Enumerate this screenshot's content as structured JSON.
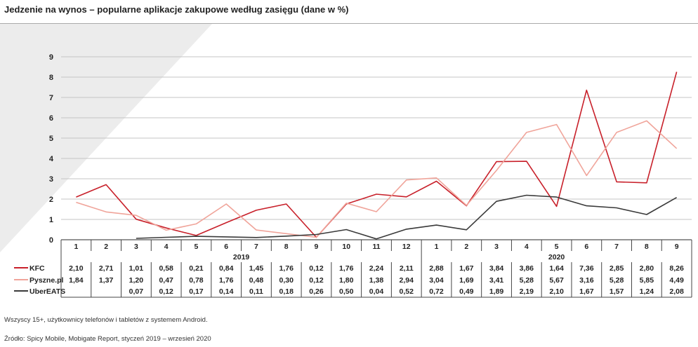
{
  "header": {
    "title": "Jedzenie na wynos – popularne aplikacje zakupowe według zasięgu (dane w %)"
  },
  "footer": {
    "note": "Wszyscy 15+, użytkownicy telefonów i tabletów z systemem Android.",
    "source": "Źródło: Spicy Mobile, Mobigate Report, styczeń 2019 – wrzesień 2020"
  },
  "chart_data": {
    "type": "line",
    "title": "Jedzenie na wynos – popularne aplikacje zakupowe według zasięgu (dane w %)",
    "xlabel": "",
    "ylabel": "",
    "ylim": [
      0,
      9
    ],
    "yticks": [
      0,
      1,
      2,
      3,
      4,
      5,
      6,
      7,
      8,
      9
    ],
    "grid": true,
    "legend": "in data table, left",
    "categories": [
      "1",
      "2",
      "3",
      "4",
      "5",
      "6",
      "7",
      "8",
      "9",
      "10",
      "11",
      "12",
      "1",
      "2",
      "3",
      "4",
      "5",
      "6",
      "7",
      "8",
      "9"
    ],
    "years": [
      {
        "label": "2019",
        "start": 0,
        "end": 11
      },
      {
        "label": "2020",
        "start": 12,
        "end": 20
      }
    ],
    "series": [
      {
        "name": "KFC",
        "color": "#c8202a",
        "values": [
          2.1,
          2.71,
          1.01,
          0.58,
          0.21,
          0.84,
          1.45,
          1.76,
          0.12,
          1.76,
          2.24,
          2.11,
          2.88,
          1.67,
          3.84,
          3.86,
          1.64,
          7.36,
          2.85,
          2.8,
          8.26
        ],
        "labels": [
          "2,10",
          "2,71",
          "1,01",
          "0,58",
          "0,21",
          "0,84",
          "1,45",
          "1,76",
          "0,12",
          "1,76",
          "2,24",
          "2,11",
          "2,88",
          "1,67",
          "3,84",
          "3,86",
          "1,64",
          "7,36",
          "2,85",
          "2,80",
          "8,26"
        ]
      },
      {
        "name": "Pyszne.pl",
        "color": "#f0a49a",
        "values": [
          1.84,
          1.37,
          1.2,
          0.47,
          0.78,
          1.76,
          0.48,
          0.3,
          0.12,
          1.8,
          1.38,
          2.94,
          3.04,
          1.69,
          3.41,
          5.28,
          5.67,
          3.16,
          5.28,
          5.85,
          4.49
        ],
        "labels": [
          "1,84",
          "1,37",
          "1,20",
          "0,47",
          "0,78",
          "1,76",
          "0,48",
          "0,30",
          "0,12",
          "1,80",
          "1,38",
          "2,94",
          "3,04",
          "1,69",
          "3,41",
          "5,28",
          "5,67",
          "3,16",
          "5,28",
          "5,85",
          "4,49"
        ]
      },
      {
        "name": "UberEATS",
        "color": "#3a3a3a",
        "values": [
          null,
          null,
          0.07,
          0.12,
          0.17,
          0.14,
          0.11,
          0.18,
          0.26,
          0.5,
          0.04,
          0.52,
          0.72,
          0.49,
          1.89,
          2.19,
          2.1,
          1.67,
          1.57,
          1.24,
          2.08
        ],
        "labels": [
          "",
          "",
          "0,07",
          "0,12",
          "0,17",
          "0,14",
          "0,11",
          "0,18",
          "0,26",
          "0,50",
          "0,04",
          "0,52",
          "0,72",
          "0,49",
          "1,89",
          "2,19",
          "2,10",
          "1,67",
          "1,57",
          "1,24",
          "2,08"
        ]
      }
    ]
  }
}
